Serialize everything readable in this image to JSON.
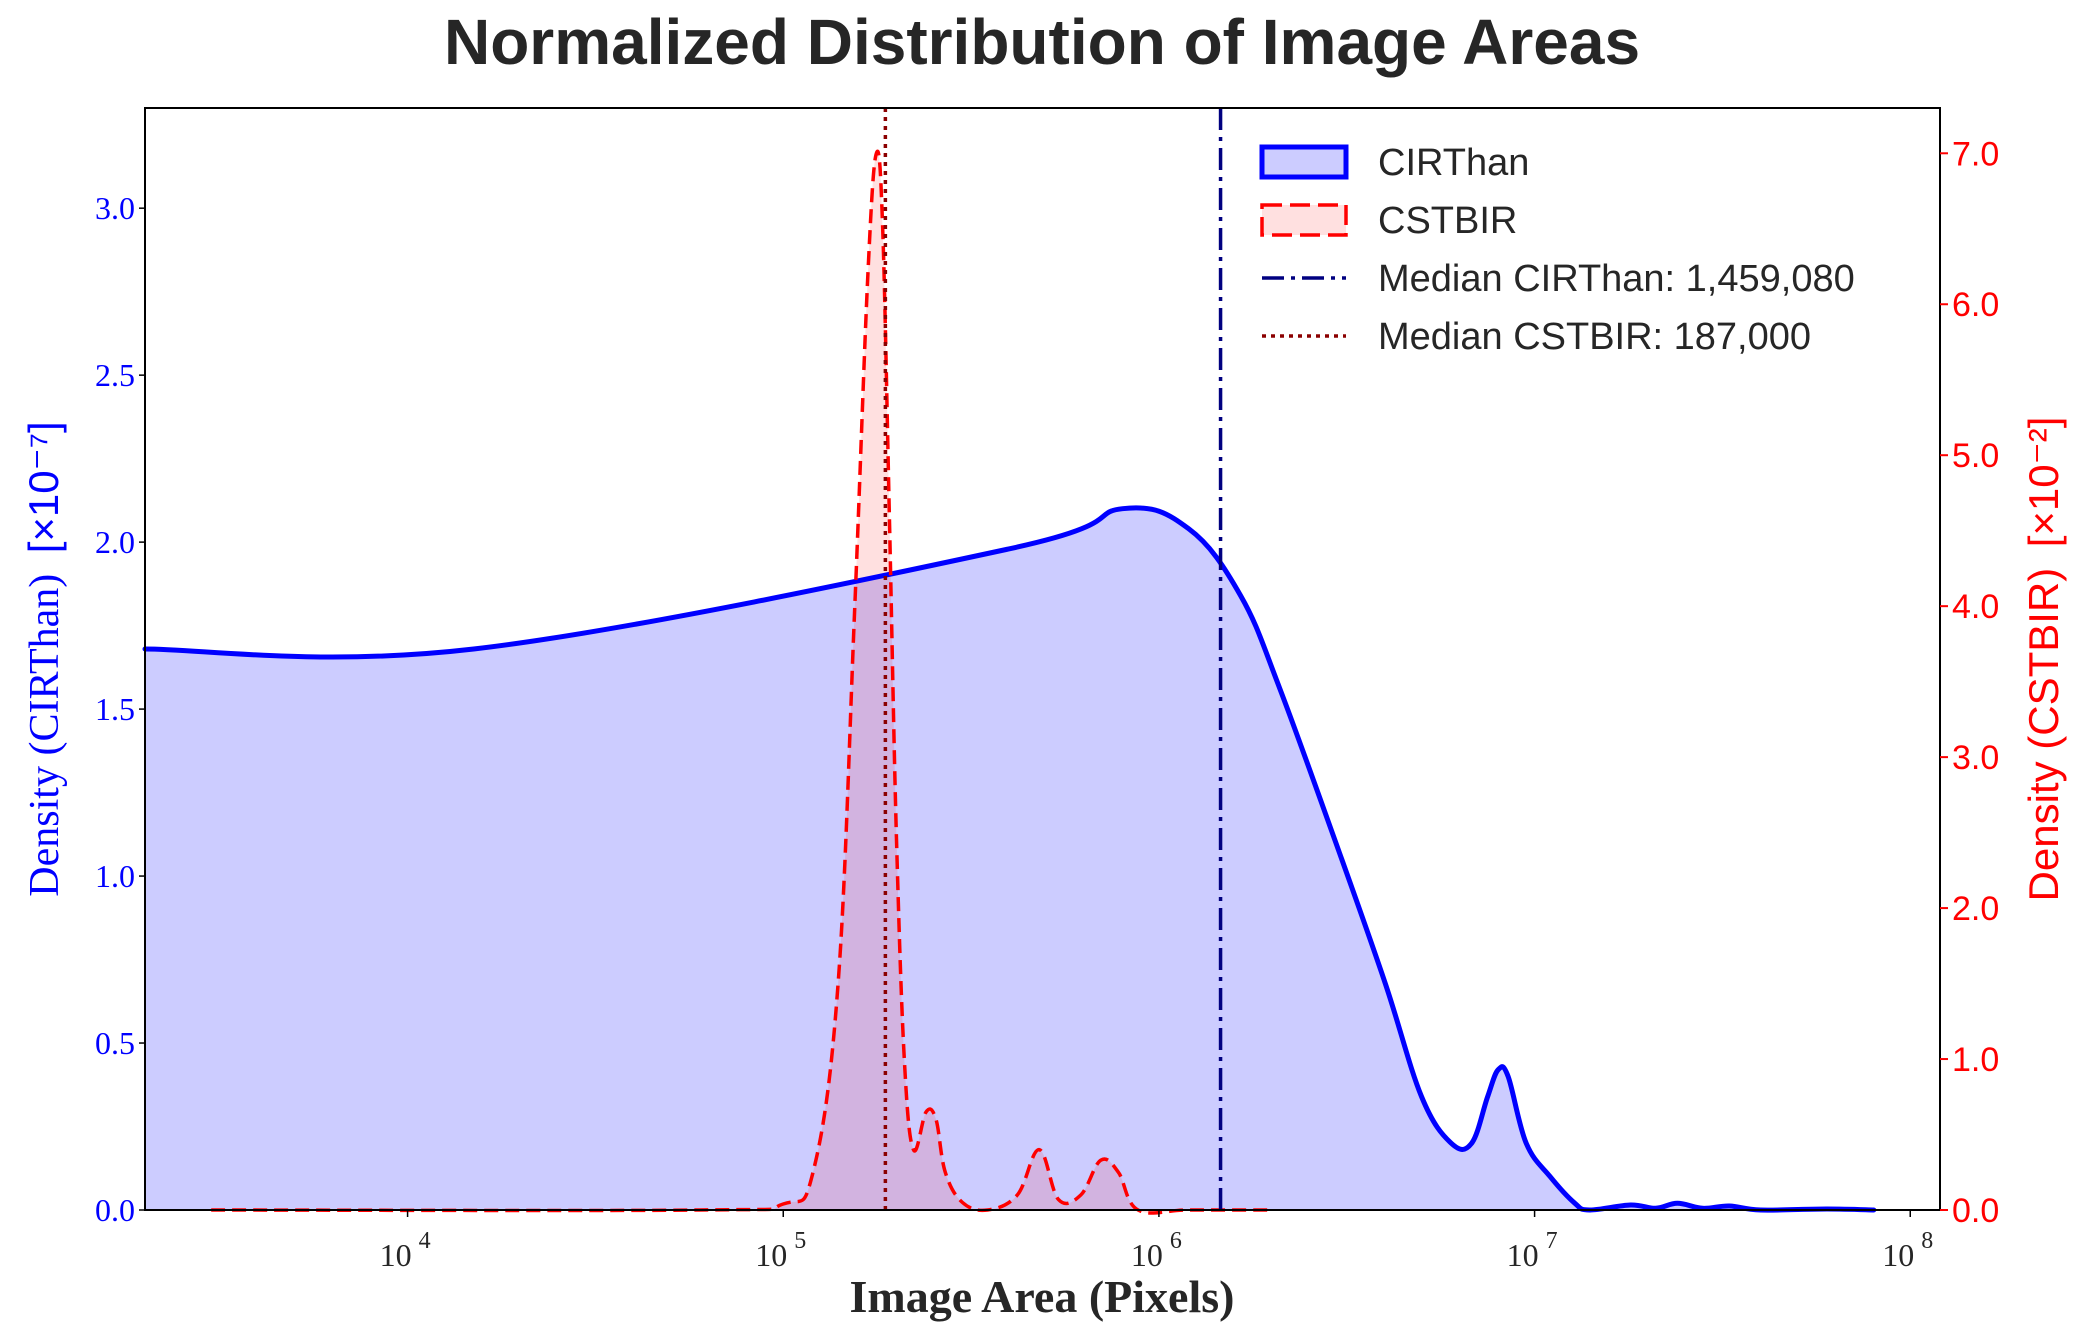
{
  "chart_data": {
    "type": "area",
    "title": "Normalized Distribution of Image Areas",
    "xlabel": "Image Area (Pixels)",
    "xscale": "log",
    "xlim": [
      2000,
      120000000
    ],
    "x_ticks": [
      {
        "value": 10000,
        "base": "10",
        "exp": "4"
      },
      {
        "value": 100000,
        "base": "10",
        "exp": "5"
      },
      {
        "value": 1000000,
        "base": "10",
        "exp": "6"
      },
      {
        "value": 10000000,
        "base": "10",
        "exp": "7"
      },
      {
        "value": 100000000,
        "base": "10",
        "exp": "8"
      }
    ],
    "left_axis": {
      "label": "Density (CIRThan)",
      "multiplier": "[×10⁻⁷]",
      "ylim": [
        0,
        3.3
      ],
      "ticks": [
        "0.0",
        "0.5",
        "1.0",
        "1.5",
        "2.0",
        "2.5",
        "3.0"
      ],
      "color": "#0000ff"
    },
    "right_axis": {
      "label": "Density (CSTBIR)",
      "multiplier": "[×10⁻²]",
      "ylim": [
        0,
        7.3
      ],
      "ticks": [
        "0.0",
        "1.0",
        "2.0",
        "3.0",
        "4.0",
        "5.0",
        "6.0",
        "7.0"
      ],
      "color": "#ff0000"
    },
    "series": [
      {
        "name": "CIRThan",
        "axis": "left",
        "color": "#0000ff",
        "style": "solid",
        "filled": true,
        "x": [
          2000,
          15000,
          400000,
          800000,
          1200000,
          1650000,
          2100000,
          3000000,
          4000000,
          5000000,
          6000000,
          6800000,
          7500000,
          8000000,
          8500000,
          9500000,
          11000000,
          12800000,
          14000000,
          18000000,
          21000000,
          24000000,
          28000000,
          33000000,
          40000000,
          60000000,
          80000000
        ],
        "values": [
          1.68,
          1.68,
          1.98,
          2.1,
          2.04,
          1.84,
          1.56,
          1.08,
          0.68,
          0.34,
          0.2,
          0.2,
          0.34,
          0.42,
          0.4,
          0.2,
          0.1,
          0.02,
          0.0,
          0.015,
          0.005,
          0.02,
          0.005,
          0.012,
          0.0,
          0.003,
          0.0
        ]
      },
      {
        "name": "CSTBIR",
        "axis": "right",
        "color": "#ff0000",
        "style": "dashed",
        "filled": true,
        "x": [
          3000,
          60000,
          100000,
          120000,
          140000,
          155000,
          168000,
          177000,
          184000,
          192000,
          200000,
          210000,
          222000,
          240000,
          255000,
          270000,
          300000,
          350000,
          420000,
          480000,
          540000,
          620000,
          700000,
          780000,
          880000,
          1200000,
          2000000
        ],
        "values": [
          0.0,
          0.0,
          0.04,
          0.25,
          1.5,
          4.0,
          6.2,
          7.0,
          6.5,
          4.5,
          2.5,
          1.0,
          0.4,
          0.65,
          0.6,
          0.25,
          0.05,
          0.0,
          0.1,
          0.4,
          0.07,
          0.1,
          0.33,
          0.25,
          0.0,
          0.0,
          0.0
        ]
      }
    ],
    "median_lines": [
      {
        "name": "Median CIRThan",
        "value": 1459080,
        "label": "Median CIRThan: 1,459,080",
        "color": "#000080",
        "style": "dashdot"
      },
      {
        "name": "Median CSTBIR",
        "value": 187000,
        "label": "Median CSTBIR: 187,000",
        "color": "#8b0000",
        "style": "dotted"
      }
    ],
    "legend": {
      "position": "top-right",
      "entries": [
        "CIRThan",
        "CSTBIR",
        "Median CIRThan: 1,459,080",
        "Median CSTBIR: 187,000"
      ]
    }
  }
}
